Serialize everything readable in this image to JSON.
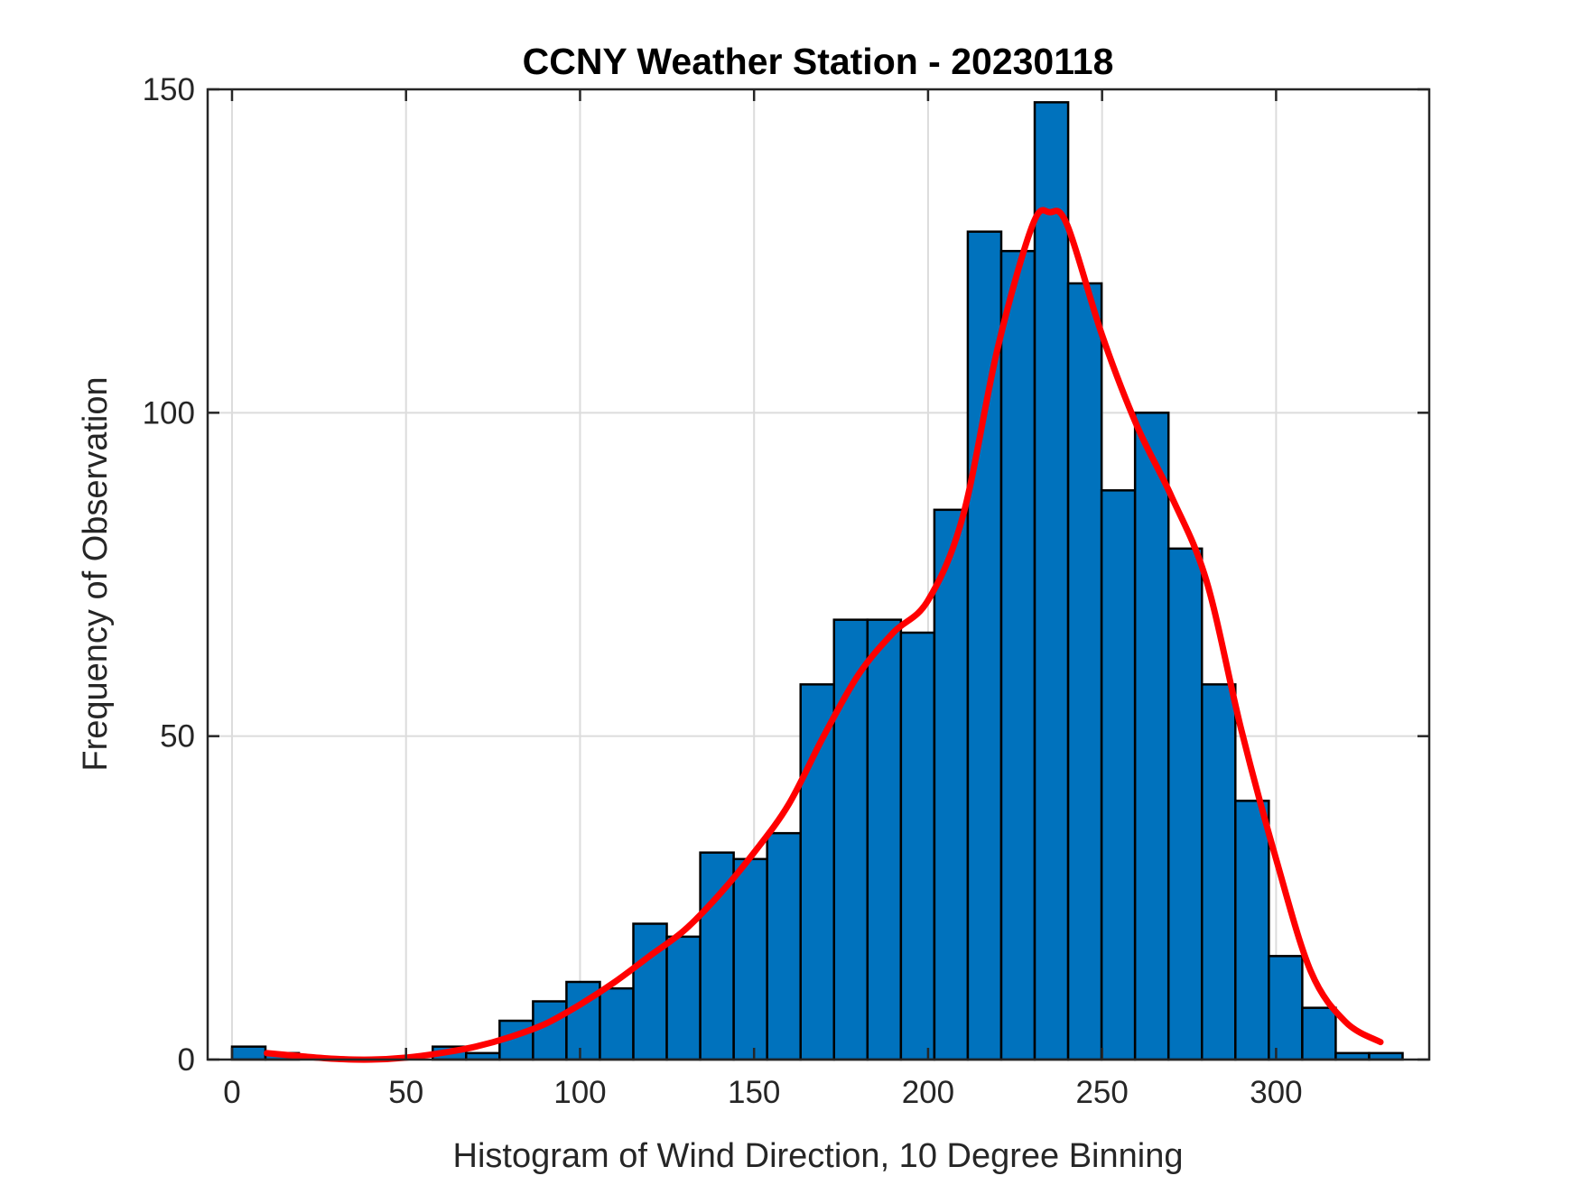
{
  "chart_data": {
    "type": "bar",
    "title": "CCNY Weather Station - 20230118",
    "xlabel": "Histogram of Wind Direction, 10 Degree Binning",
    "ylabel": "Frequency of Observation",
    "xlim": [
      -7,
      344
    ],
    "ylim": [
      0,
      150
    ],
    "grid": true,
    "xticks": [
      0,
      50,
      100,
      150,
      200,
      250,
      300
    ],
    "yticks": [
      0,
      50,
      100,
      150
    ],
    "bin_start": 0,
    "bin_width": 9.61,
    "bar_color": "#0072BD",
    "values": [
      2,
      1,
      0,
      0,
      0,
      0,
      2,
      1,
      6,
      9,
      12,
      11,
      21,
      19,
      32,
      31,
      35,
      58,
      68,
      68,
      66,
      85,
      128,
      125,
      148,
      120,
      88,
      100,
      79,
      58,
      40,
      16,
      8,
      1,
      1
    ],
    "fit_curve": {
      "color": "#FF0000",
      "x": [
        10,
        20,
        30,
        40,
        50,
        60,
        70,
        80,
        90,
        100,
        110,
        120,
        130,
        140,
        150,
        160,
        170,
        180,
        190,
        200,
        210,
        220,
        230,
        235,
        240,
        250,
        260,
        270,
        280,
        290,
        300,
        310,
        320,
        330
      ],
      "y": [
        1,
        0.5,
        0.1,
        0,
        0.3,
        1,
        2,
        3.5,
        5.5,
        8.5,
        12,
        16,
        20,
        25.5,
        32,
        39.5,
        50,
        59.5,
        66,
        71,
        84,
        110,
        129,
        131,
        129,
        112,
        98,
        87,
        74,
        51,
        31,
        13.6,
        5.8,
        2.7
      ]
    }
  }
}
